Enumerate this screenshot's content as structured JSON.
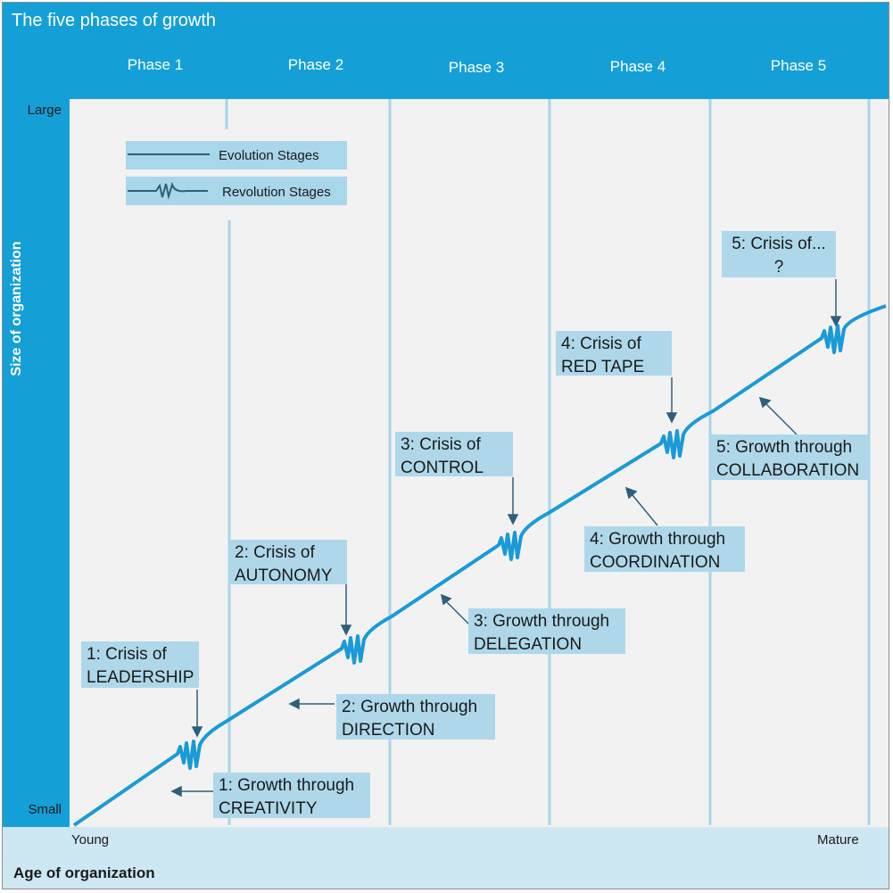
{
  "title": "The five phases of growth",
  "phases": [
    "Phase 1",
    "Phase 2",
    "Phase 3",
    "Phase 4",
    "Phase 5"
  ],
  "y_axis": {
    "title": "Size of  organization",
    "top": "Large",
    "bottom": "Small"
  },
  "x_axis": {
    "title": "Age of organization",
    "left": "Young",
    "right": "Mature"
  },
  "legend": {
    "evolution": "Evolution Stages",
    "revolution": "Revolution Stages"
  },
  "crises": [
    {
      "line1": "1: Crisis of",
      "line2": "LEADERSHIP"
    },
    {
      "line1": "2: Crisis of",
      "line2": "AUTONOMY"
    },
    {
      "line1": "3: Crisis of",
      "line2": "CONTROL"
    },
    {
      "line1": "4: Crisis of",
      "line2": "RED TAPE"
    },
    {
      "line1": "5: Crisis of...",
      "line2": "?"
    }
  ],
  "growth": [
    {
      "line1": "1: Growth through",
      "line2": "CREATIVITY"
    },
    {
      "line1": "2: Growth through",
      "line2": "DIRECTION"
    },
    {
      "line1": "3: Growth through",
      "line2": "DELEGATION"
    },
    {
      "line1": "4: Growth through",
      "line2": "COORDINATION"
    },
    {
      "line1": "5: Growth through",
      "line2": "COLLABORATION"
    }
  ],
  "colors": {
    "header": "#159fd7",
    "line": "#1a9ad6",
    "label_bg": "#aed8ea",
    "arrow": "#2f5f7a"
  }
}
